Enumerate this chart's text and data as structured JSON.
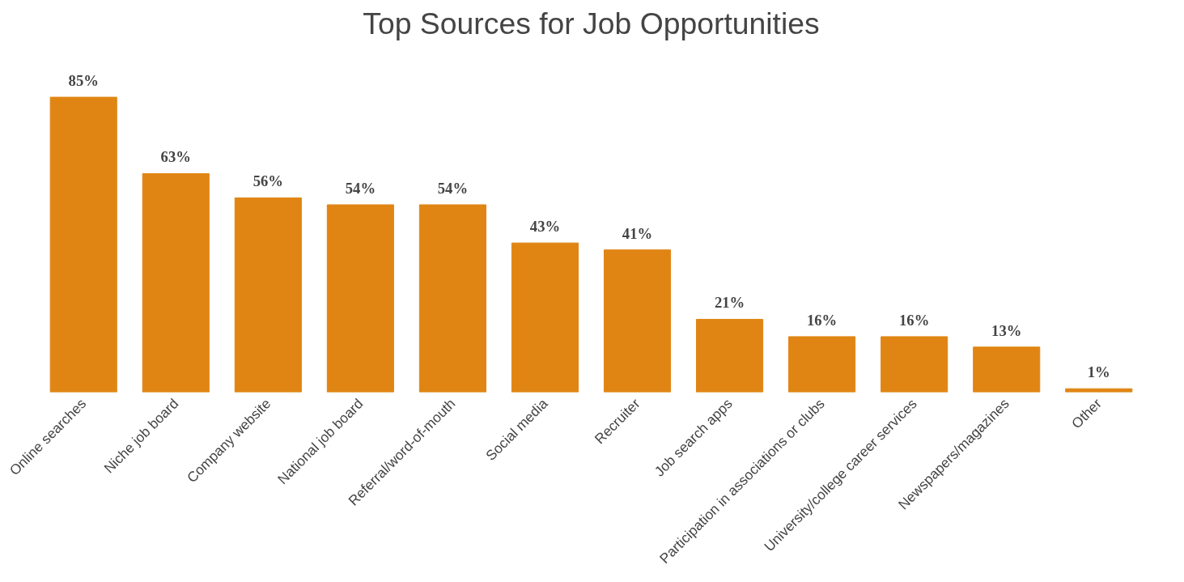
{
  "chart_data": {
    "type": "bar",
    "title": "Top Sources for Job Opportunities",
    "categories": [
      "Online searches",
      "Niche job board",
      "Company website",
      "National job board",
      "Referral/word-of-mouth",
      "Social media",
      "Recruiter",
      "Job search apps",
      "Participation in associations or clubs",
      "University/college career services",
      "Newspapers/magazines",
      "Other"
    ],
    "values": [
      85,
      63,
      56,
      54,
      54,
      43,
      41,
      21,
      16,
      16,
      13,
      1
    ],
    "value_labels": [
      "85%",
      "63%",
      "56%",
      "54%",
      "54%",
      "43%",
      "41%",
      "21%",
      "16%",
      "16%",
      "13%",
      "1%"
    ],
    "color": "#e08514",
    "grid": false
  }
}
